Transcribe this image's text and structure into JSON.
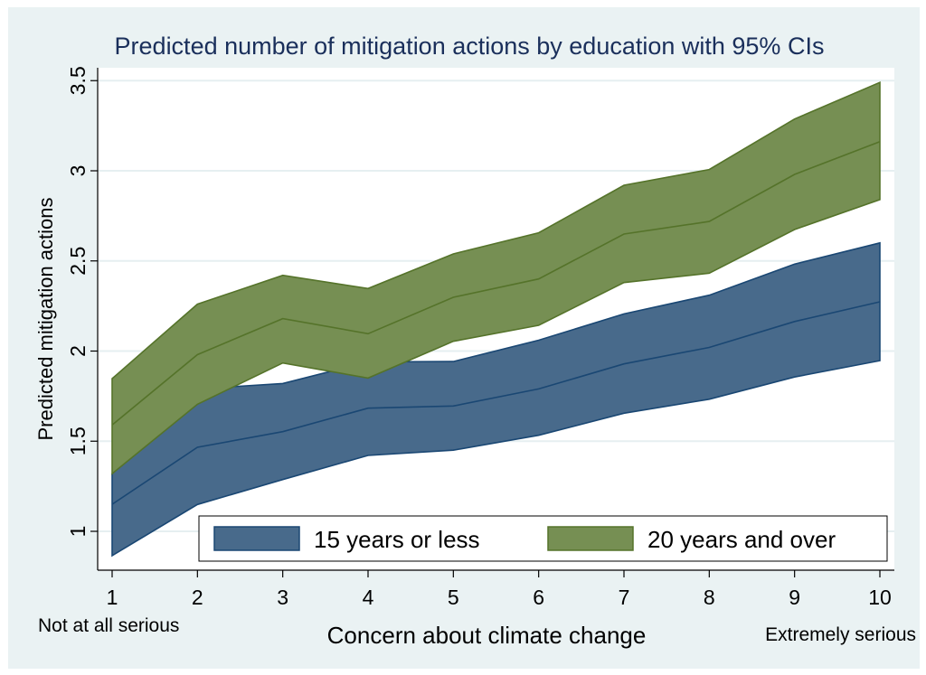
{
  "chart_data": {
    "type": "area",
    "title": "Predicted number of mitigation actions by education with 95% CIs",
    "xlabel": "Concern about climate change",
    "ylabel": "Predicted mitigation actions",
    "x": [
      1,
      2,
      3,
      4,
      5,
      6,
      7,
      8,
      9,
      10
    ],
    "x_tick_labels": [
      "1",
      "2",
      "3",
      "4",
      "5",
      "6",
      "7",
      "8",
      "9",
      "10"
    ],
    "x_end_labels": {
      "left": "Not at all serious",
      "right": "Extremely serious"
    },
    "xlim": [
      0.83,
      10.17
    ],
    "y_ticks": [
      1,
      1.5,
      2,
      2.5,
      3,
      3.5
    ],
    "y_tick_labels": [
      "1",
      "1.5",
      "2",
      "2.5",
      "3",
      "3.5"
    ],
    "ylim": [
      0.78,
      3.57
    ],
    "grid": "horizontal",
    "legend_position": "bottom-inside",
    "series": [
      {
        "name": "15 years or less",
        "fill": "#486a8b",
        "line": "#1a4773",
        "estimate": [
          1.15,
          1.466,
          1.553,
          1.683,
          1.695,
          1.79,
          1.929,
          2.02,
          2.164,
          2.273
        ],
        "lower": [
          0.865,
          1.149,
          1.287,
          1.421,
          1.45,
          1.533,
          1.655,
          1.733,
          1.856,
          1.947
        ],
        "upper": [
          1.32,
          1.79,
          1.82,
          1.94,
          1.942,
          2.06,
          2.206,
          2.31,
          2.482,
          2.6
        ]
      },
      {
        "name": "20 years and over",
        "fill": "#768f53",
        "line": "#55732a",
        "estimate": [
          1.59,
          1.98,
          2.18,
          2.096,
          2.298,
          2.4,
          2.649,
          2.719,
          2.98,
          3.162
        ],
        "lower": [
          1.32,
          1.705,
          1.934,
          1.85,
          2.054,
          2.143,
          2.38,
          2.432,
          2.674,
          2.84
        ],
        "upper": [
          1.847,
          2.26,
          2.42,
          2.347,
          2.539,
          2.656,
          2.92,
          3.007,
          3.287,
          3.49
        ]
      }
    ]
  }
}
